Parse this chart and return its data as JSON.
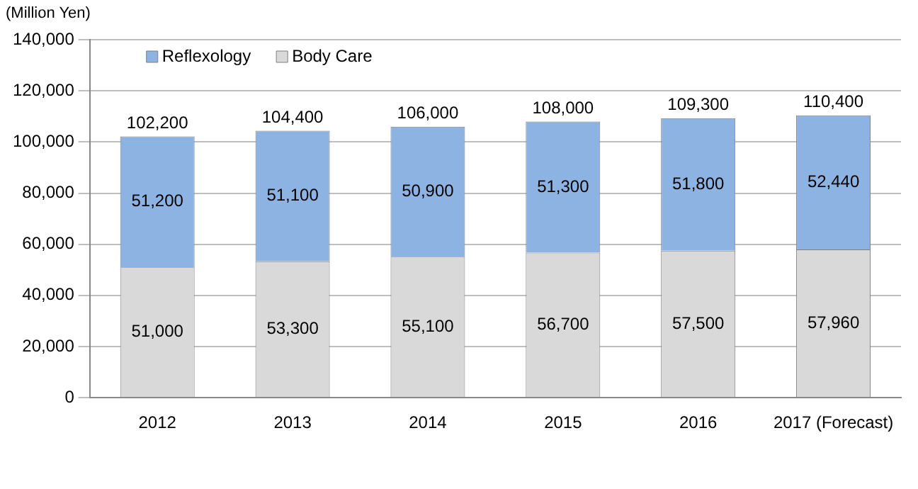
{
  "chart_data": {
    "type": "bar",
    "ylabel": "(Million Yen)",
    "categories": [
      "2012",
      "2013",
      "2014",
      "2015",
      "2016",
      "2017 (Forecast)"
    ],
    "series": [
      {
        "name": "Body Care",
        "color": "#d9d9d9",
        "values": [
          51000,
          53300,
          55100,
          56700,
          57500,
          57960
        ],
        "value_labels": [
          "51,000",
          "53,300",
          "55,100",
          "56,700",
          "57,500",
          "57,960"
        ]
      },
      {
        "name": "Reflexology",
        "color": "#8db3e2",
        "values": [
          51200,
          51100,
          50900,
          51300,
          51800,
          52440
        ],
        "value_labels": [
          "51,200",
          "51,100",
          "50,900",
          "51,300",
          "51,800",
          "52,440"
        ]
      }
    ],
    "totals": [
      "102,200",
      "104,400",
      "106,000",
      "108,000",
      "109,300",
      "110,400"
    ],
    "stacked": true,
    "ylim": [
      0,
      140000
    ],
    "yticks": [
      {
        "value": 0,
        "label": "0"
      },
      {
        "value": 20000,
        "label": "20,000"
      },
      {
        "value": 40000,
        "label": "40,000"
      },
      {
        "value": 60000,
        "label": "60,000"
      },
      {
        "value": 80000,
        "label": "80,000"
      },
      {
        "value": 100000,
        "label": "100,000"
      },
      {
        "value": 120000,
        "label": "120,000"
      },
      {
        "value": 140000,
        "label": "140,000"
      }
    ],
    "grid": "y",
    "legend": "top left"
  }
}
